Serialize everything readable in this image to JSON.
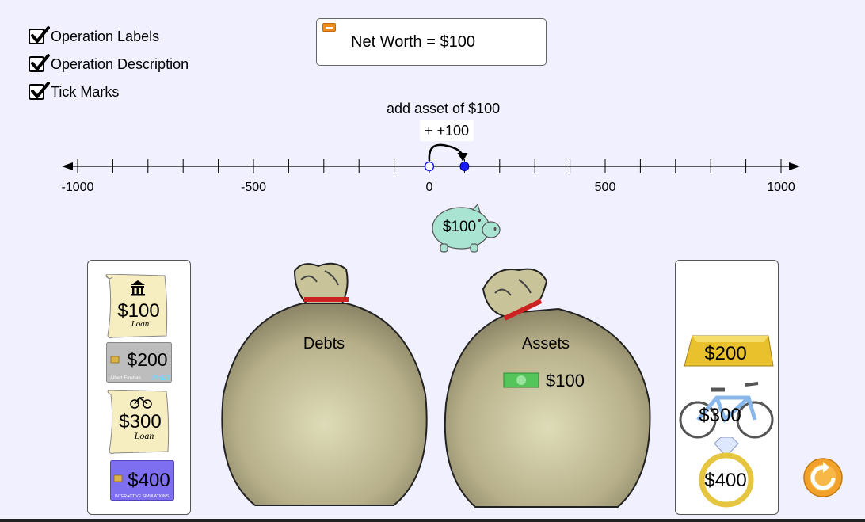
{
  "checkboxes": [
    {
      "label": "Operation Labels",
      "checked": true
    },
    {
      "label": "Operation Description",
      "checked": true
    },
    {
      "label": "Tick Marks",
      "checked": true
    }
  ],
  "net_worth": {
    "label": "Net Worth = $100"
  },
  "operation": {
    "label": "add asset of $100",
    "description": "+ +100"
  },
  "number_line": {
    "min": -1000,
    "max": 1000,
    "tick_interval": 100,
    "tick_labels": [
      "-1000",
      "-500",
      "0",
      "500",
      "1000"
    ],
    "start_value": 0,
    "current_value": 100
  },
  "piggy_bank": {
    "label": "$100"
  },
  "debts_bag": {
    "label": "Debts"
  },
  "assets_bag": {
    "label": "Assets",
    "contents": [
      {
        "icon": "cash-icon",
        "amount": "$100"
      }
    ]
  },
  "debt_items": [
    {
      "type": "loan",
      "icon": "bank-icon",
      "amount": "$100",
      "caption": "Loan"
    },
    {
      "type": "credit-card",
      "amount": "$200",
      "caption": "Albert Einstein",
      "brand": "PhET"
    },
    {
      "type": "loan",
      "icon": "bicycle-icon",
      "amount": "$300",
      "caption": "Loan"
    },
    {
      "type": "credit-card",
      "amount": "$400",
      "caption": "INTERACTIVE SIMULATIONS"
    }
  ],
  "asset_items": [
    {
      "type": "gold-bar",
      "amount": "$200"
    },
    {
      "type": "bicycle",
      "amount": "$300"
    },
    {
      "type": "ring",
      "amount": "$400"
    }
  ],
  "colors": {
    "background": "#f0f0ff",
    "accent": "#f08c1c",
    "point": "#1a1aff",
    "bag": "#c9c39a"
  }
}
